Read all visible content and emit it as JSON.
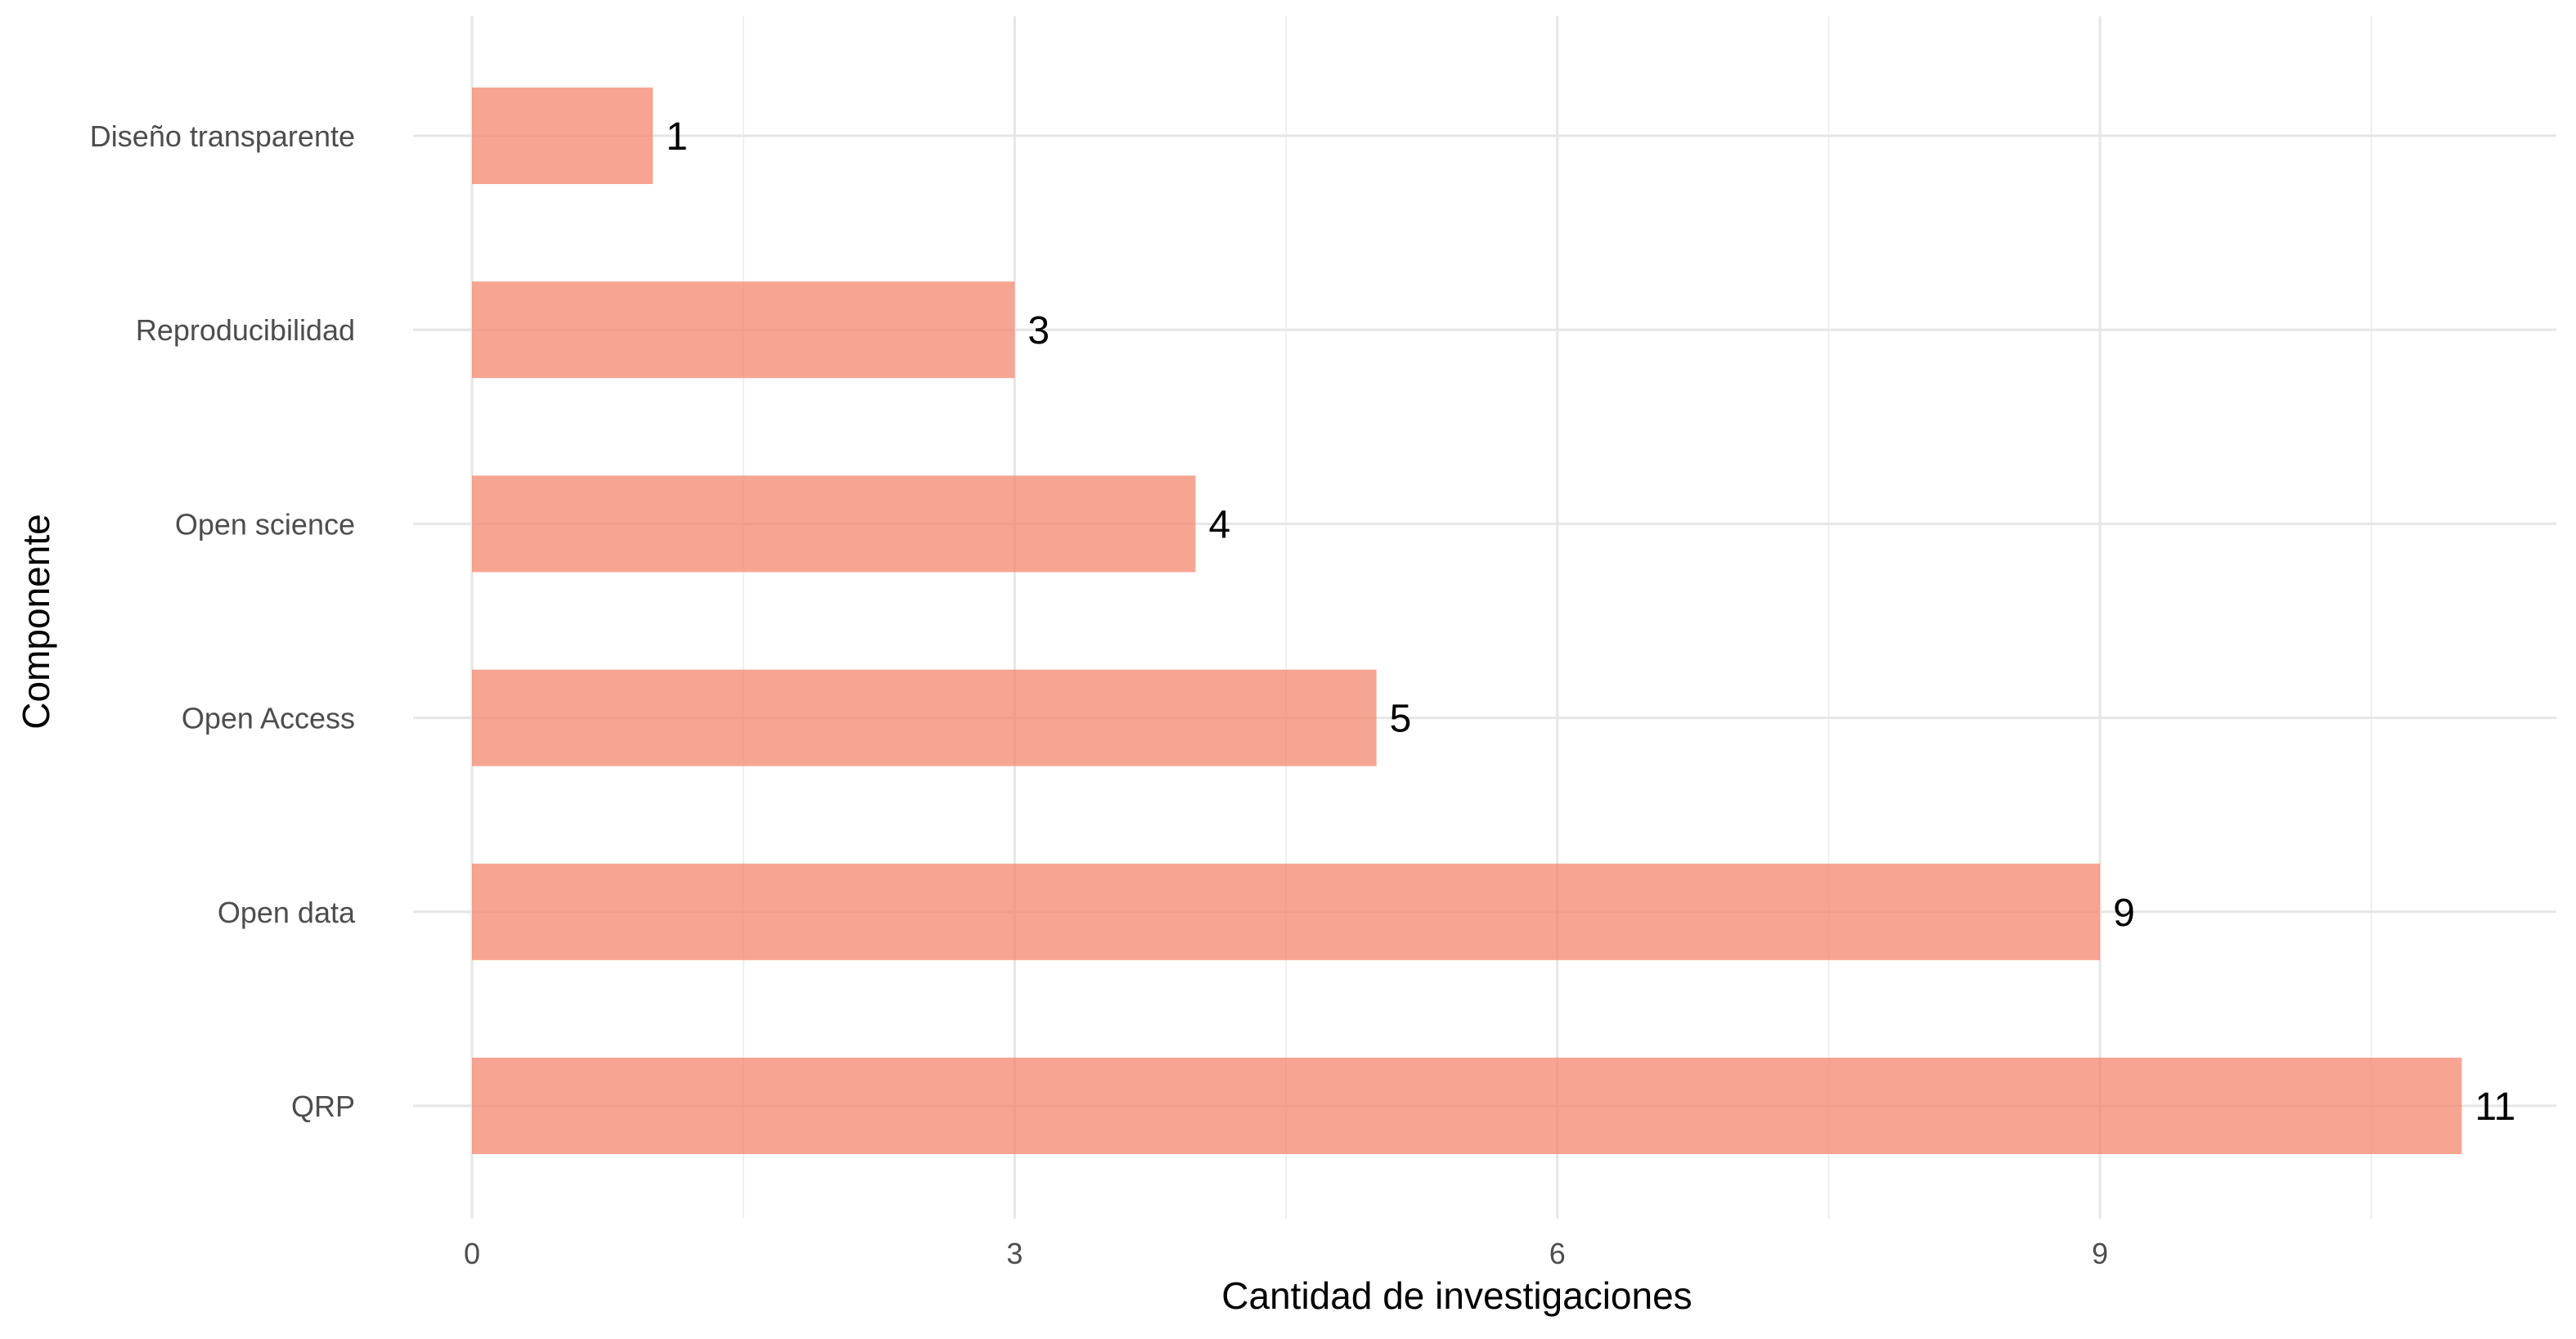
{
  "chart_data": {
    "type": "bar",
    "orientation": "horizontal",
    "categories": [
      "QRP",
      "Open data",
      "Open Access",
      "Open science",
      "Reproducibilidad",
      "Diseño transparente"
    ],
    "values": [
      11,
      9,
      5,
      4,
      3,
      1
    ],
    "data_labels": [
      "11",
      "9",
      "5",
      "4",
      "3",
      "1"
    ],
    "xlabel": "Cantidad de investigaciones",
    "ylabel": "Componente",
    "x_ticks": [
      0,
      3,
      6,
      9
    ],
    "x_tick_labels": [
      "0",
      "3",
      "6",
      "9"
    ],
    "xlim": [
      0,
      11.55
    ],
    "grid": true,
    "legend": "none",
    "bar_color": "#f4826a",
    "bar_opacity": 0.72
  }
}
